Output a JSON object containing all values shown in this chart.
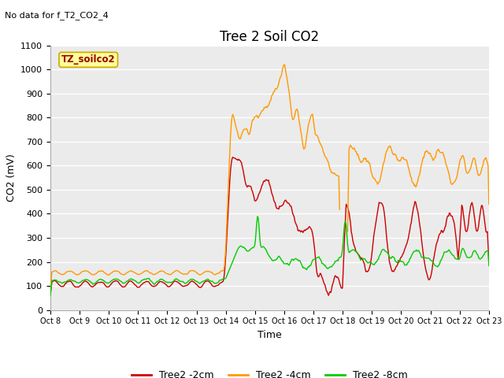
{
  "title": "Tree 2 Soil CO2",
  "subtitle": "No data for f_T2_CO2_4",
  "ylabel": "CO2 (mV)",
  "xlabel": "Time",
  "ylim": [
    0,
    1100
  ],
  "yticks": [
    0,
    100,
    200,
    300,
    400,
    500,
    600,
    700,
    800,
    900,
    1000,
    1100
  ],
  "x_tick_labels": [
    "Oct 8",
    "Oct 9",
    "Oct 10",
    "Oct 11",
    "Oct 12",
    "Oct 13",
    "Oct 14",
    "Oct 15",
    "Oct 16",
    "Oct 17",
    "Oct 18",
    "Oct 19",
    "Oct 20",
    "Oct 21",
    "Oct 22",
    "Oct 23"
  ],
  "legend_box_text": "TZ_soilco2",
  "legend_box_color": "#ffff99",
  "legend_box_border": "#ccaa00",
  "color_2cm": "#cc0000",
  "color_4cm": "#ff9900",
  "color_8cm": "#00cc00",
  "fig_bg_color": "#ffffff",
  "plot_bg_color": "#ebebeb",
  "grid_color": "#ffffff",
  "title_fontsize": 12,
  "label_fontsize": 9,
  "tick_fontsize": 8
}
